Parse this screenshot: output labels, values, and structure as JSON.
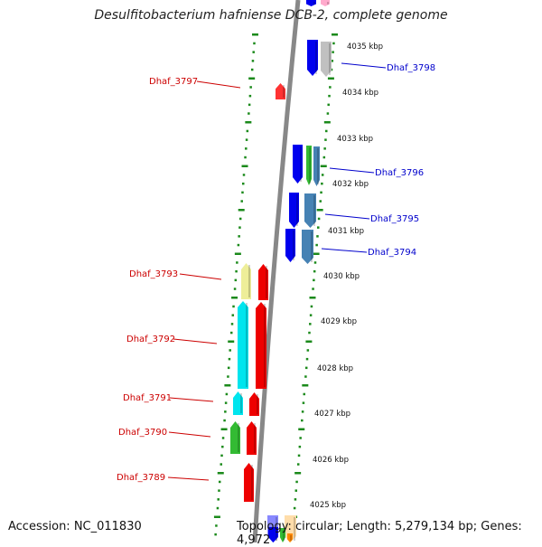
{
  "title": "Desulfitobacterium hafniense DCB-2, complete genome",
  "footer": {
    "accession": "Accession: NC_011830",
    "topology": "Topology: circular; Length: 5,279,134 bp; Genes: 4,972"
  },
  "colors": {
    "backbone": "#888888",
    "ruler": "#1b8a1b",
    "left_label": "#cc0000",
    "right_label": "#0000cc",
    "kbp_label": "#111111"
  },
  "kbp_labels": [
    "4035 kbp",
    "4034 kbp",
    "4033 kbp",
    "4032 kbp",
    "4031 kbp",
    "4030 kbp",
    "4029 kbp",
    "4028 kbp",
    "4027 kbp",
    "4026 kbp",
    "4025 kbp"
  ],
  "gene_labels_left": [
    "Dhaf_3797",
    "Dhaf_3793",
    "Dhaf_3792",
    "Dhaf_3791",
    "Dhaf_3790",
    "Dhaf_3789"
  ],
  "gene_labels_right": [
    "Dhaf_3798",
    "Dhaf_3796",
    "Dhaf_3795",
    "Dhaf_3794"
  ],
  "gene_blocks": [
    {
      "strand": "+",
      "color": "#ff3333"
    },
    {
      "strand": "+",
      "color": "#ee0000"
    },
    {
      "strand": "+",
      "color": "#ee0000"
    },
    {
      "strand": "+",
      "color": "#ee0000"
    },
    {
      "strand": "+",
      "color": "#ee0000"
    },
    {
      "strand": "+",
      "color": "#ee0000"
    },
    {
      "strand": "+",
      "color": "#eeee99"
    },
    {
      "strand": "+",
      "color": "#00e5ee"
    },
    {
      "strand": "+",
      "color": "#00e5ee"
    },
    {
      "strand": "+",
      "color": "#33bb33"
    },
    {
      "strand": "-",
      "color": "#0000ee"
    },
    {
      "strand": "-",
      "color": "#c0c0c0"
    },
    {
      "strand": "-",
      "color": "#0000ee"
    },
    {
      "strand": "-",
      "color": "#33bb33"
    },
    {
      "strand": "-",
      "color": "#4682b4"
    },
    {
      "strand": "-",
      "color": "#0000ee"
    },
    {
      "strand": "-",
      "color": "#4682b4"
    },
    {
      "strand": "-",
      "color": "#0000ee"
    },
    {
      "strand": "-",
      "color": "#4682b4"
    },
    {
      "strand": "-",
      "color": "#0000ee"
    },
    {
      "strand": "-",
      "color": "#ffaacc"
    },
    {
      "strand": "-",
      "color": "#8888ff"
    },
    {
      "strand": "-",
      "color": "#0000ee"
    },
    {
      "strand": "-",
      "color": "#ffddaa"
    },
    {
      "strand": "-",
      "color": "#33bb33"
    },
    {
      "strand": "-",
      "color": "#ff8800"
    }
  ]
}
